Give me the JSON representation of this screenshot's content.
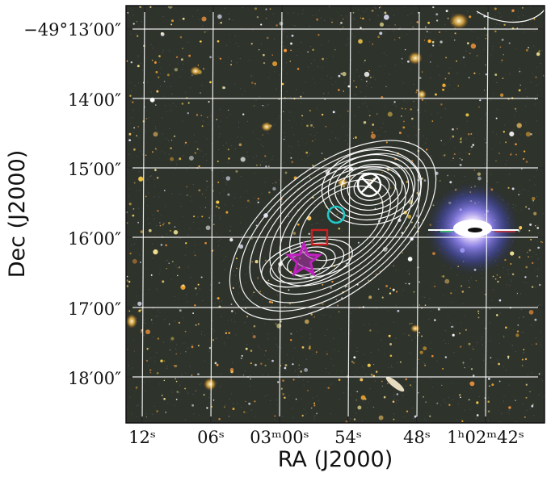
{
  "figure": {
    "x_axis_title": "RA (J2000)",
    "y_axis_title": "Dec (J2000)",
    "ra_ticks": [
      "12ˢ",
      "06ˢ",
      "03ᵐ00ˢ",
      "54ˢ",
      "48ˢ",
      "1ʰ02ᵐ42ˢ"
    ],
    "dec_ticks": [
      "−49°13′00″",
      "14′00″",
      "15′00″",
      "16′00″",
      "17′00″",
      "18′00″"
    ]
  },
  "colors": {
    "sky_background": "#2e332c",
    "grid": "#ffffff",
    "contours": "#ffffff",
    "star_marker": "#c020c0",
    "square_marker": "#cc2020",
    "circle_marker": "#20c8c8",
    "cross_marker": "#ffffff",
    "bright_star_core": "#ffffff",
    "bright_star_halo": "#6a6cff"
  },
  "markers": [
    {
      "name": "star-icon",
      "shape": "star"
    },
    {
      "name": "square-icon",
      "shape": "square"
    },
    {
      "name": "circle-icon",
      "shape": "circle"
    },
    {
      "name": "cross-icon",
      "shape": "x-in-circle"
    }
  ]
}
